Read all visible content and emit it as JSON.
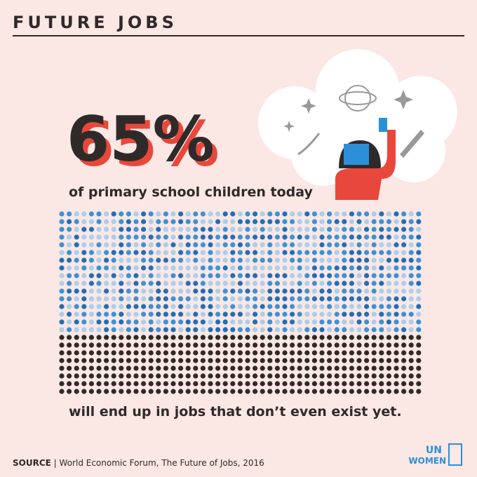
{
  "header": {
    "title": "FUTURE JOBS"
  },
  "headline": {
    "value": 65,
    "label": "65%"
  },
  "text_top": "of primary school children today",
  "text_bottom": "will end up in jobs that don’t even exist yet.",
  "source": {
    "label": "SOURCE",
    "separator": "|",
    "text": "World Economic Forum, The Future of Jobs, 2016"
  },
  "logo": {
    "line1": "UN",
    "line2": "WOMEN"
  }
}
